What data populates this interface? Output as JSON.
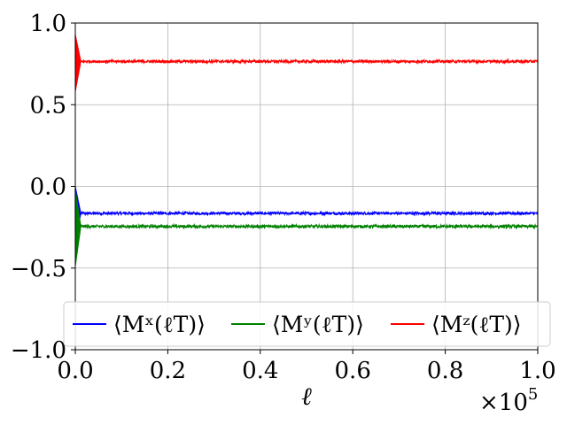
{
  "chart_data": {
    "type": "line",
    "xlabel": "ℓ",
    "x_multiplier": "×10",
    "x_multiplier_exp": "5",
    "xlim": [
      0,
      1.0
    ],
    "ylim": [
      -1.0,
      1.0
    ],
    "grid": true,
    "legend_placement": "lower-center",
    "x_ticks": [
      0.0,
      0.2,
      0.4,
      0.6,
      0.8,
      1.0
    ],
    "x_tick_labels": [
      "0.0",
      "0.2",
      "0.4",
      "0.6",
      "0.8",
      "1.0"
    ],
    "y_ticks": [
      -1.0,
      -0.5,
      0.0,
      0.5,
      1.0
    ],
    "y_tick_labels": [
      "−1.0",
      "−0.5",
      "0.0",
      "0.5",
      "1.0"
    ],
    "series": [
      {
        "name": "⟨Mˣ(ℓT)⟩",
        "color": "#0000ff",
        "transient": {
          "x_end": 0.012,
          "min": -0.34,
          "max": 0.0
        },
        "steady_value": -0.165,
        "noise": 0.008
      },
      {
        "name": "⟨Mʸ(ℓT)⟩",
        "color": "#008000",
        "transient": {
          "x_end": 0.012,
          "min": -0.49,
          "max": -0.02
        },
        "steady_value": -0.245,
        "noise": 0.009
      },
      {
        "name": "⟨Mᶻ(ℓT)⟩",
        "color": "#ff0000",
        "transient": {
          "x_end": 0.012,
          "min": 0.58,
          "max": 0.93
        },
        "steady_value": 0.765,
        "noise": 0.008
      }
    ]
  }
}
